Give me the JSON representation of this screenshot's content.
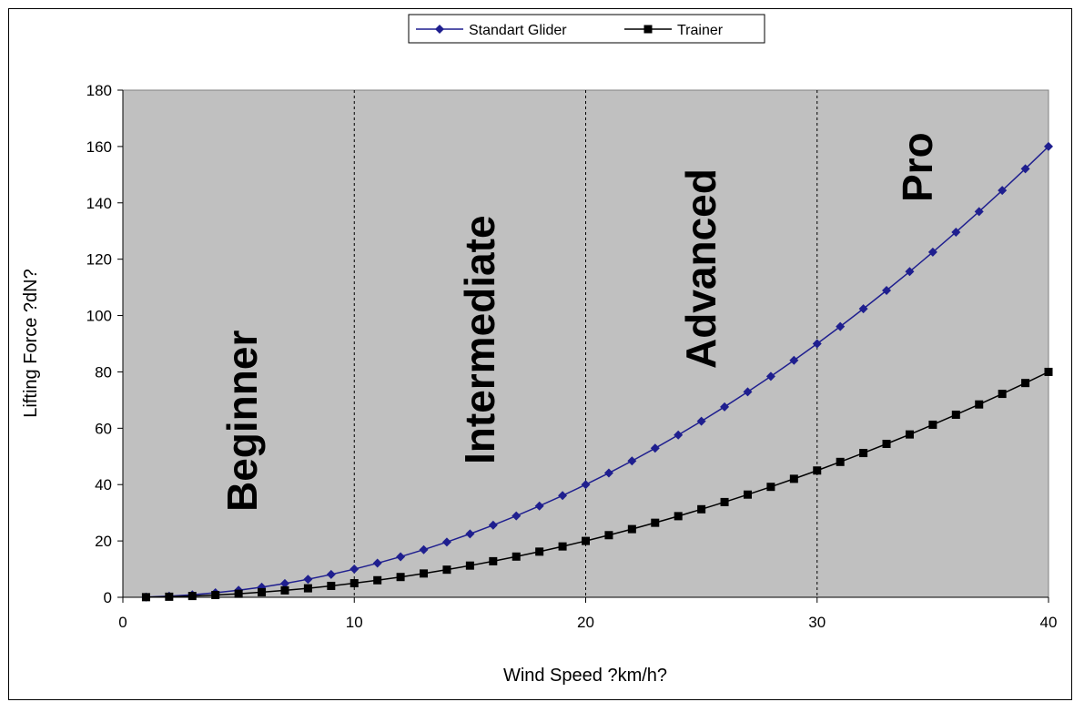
{
  "chart_data": {
    "type": "line",
    "title": "",
    "xlabel": "Wind Speed ?km/h?",
    "ylabel": "Lifting Force ?dN?",
    "xlim": [
      0,
      40
    ],
    "ylim": [
      0,
      180
    ],
    "x_ticks": [
      "0",
      "10",
      "20",
      "30",
      "40"
    ],
    "y_ticks": [
      "0",
      "20",
      "40",
      "60",
      "80",
      "100",
      "120",
      "140",
      "160",
      "180"
    ],
    "grid": false,
    "plot_background": "#c0c0c0",
    "legend_position": "top",
    "zones": [
      {
        "label": "Beginner",
        "from": 0,
        "to": 10
      },
      {
        "label": "Intermediate",
        "from": 10,
        "to": 20
      },
      {
        "label": "Advanced",
        "from": 20,
        "to": 30
      },
      {
        "label": "Pro",
        "from": 30,
        "to": 40
      }
    ],
    "x": [
      1,
      2,
      3,
      4,
      5,
      6,
      7,
      8,
      9,
      10,
      11,
      12,
      13,
      14,
      15,
      16,
      17,
      18,
      19,
      20,
      21,
      22,
      23,
      24,
      25,
      26,
      27,
      28,
      29,
      30,
      31,
      32,
      33,
      34,
      35,
      36,
      37,
      38,
      39,
      40
    ],
    "series": [
      {
        "name": "Standart Glider",
        "color": "#1f1f8f",
        "marker": "diamond",
        "values": [
          0.1,
          0.4,
          0.9,
          1.6,
          2.5,
          3.6,
          4.9,
          6.4,
          8.1,
          10,
          12.1,
          14.4,
          16.9,
          19.6,
          22.5,
          25.6,
          28.9,
          32.4,
          36.1,
          40,
          44.1,
          48.4,
          52.9,
          57.6,
          62.5,
          67.6,
          72.9,
          78.4,
          84.1,
          90,
          96.1,
          102.4,
          108.9,
          115.6,
          122.5,
          129.6,
          136.9,
          144.4,
          152.1,
          160
        ]
      },
      {
        "name": "Trainer",
        "color": "#000000",
        "marker": "square",
        "values": [
          0.05,
          0.2,
          0.45,
          0.8,
          1.25,
          1.8,
          2.45,
          3.2,
          4.05,
          5,
          6.05,
          7.2,
          8.45,
          9.8,
          11.25,
          12.8,
          14.45,
          16.2,
          18.05,
          20,
          22.05,
          24.2,
          26.45,
          28.8,
          31.25,
          33.8,
          36.45,
          39.2,
          42.05,
          45,
          48.05,
          51.2,
          54.45,
          57.8,
          61.25,
          64.8,
          68.45,
          72.2,
          76.05,
          80
        ]
      }
    ]
  }
}
